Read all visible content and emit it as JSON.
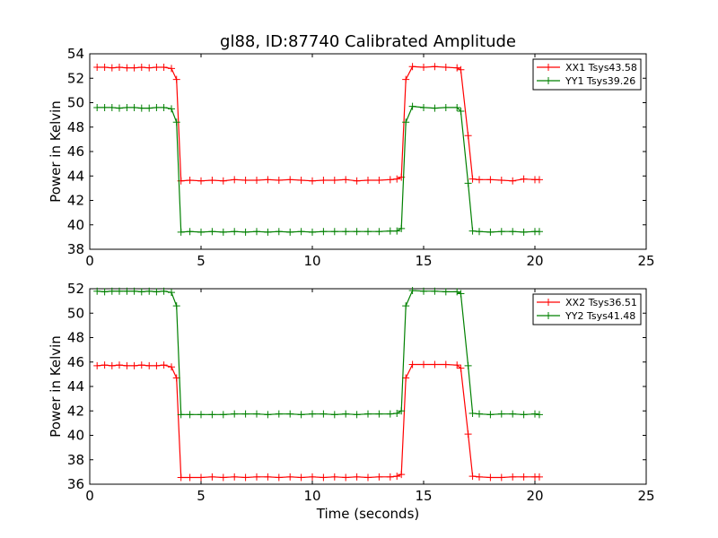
{
  "figure": {
    "title": "gl88, ID:87740 Calibrated Amplitude",
    "xlabel": "Time (seconds)"
  },
  "chart_data": [
    {
      "type": "line",
      "title": "gl88, ID:87740 Calibrated Amplitude",
      "xlabel": "",
      "ylabel": "Power in Kelvin",
      "xlim": [
        0,
        25
      ],
      "ylim": [
        38,
        54
      ],
      "x_ticks": [
        0,
        5,
        10,
        15,
        20,
        25
      ],
      "y_ticks": [
        38,
        40,
        42,
        44,
        46,
        48,
        50,
        52,
        54
      ],
      "legend_position": "top-right",
      "grid": false,
      "series": [
        {
          "name": "XX1 Tsys43.58",
          "color": "#ff0000",
          "points": [
            [
              0.33,
              52.9
            ],
            [
              0.67,
              52.9
            ],
            [
              1.0,
              52.85
            ],
            [
              1.33,
              52.9
            ],
            [
              1.67,
              52.85
            ],
            [
              2.0,
              52.85
            ],
            [
              2.33,
              52.9
            ],
            [
              2.67,
              52.85
            ],
            [
              3.0,
              52.9
            ],
            [
              3.33,
              52.9
            ],
            [
              3.67,
              52.8
            ],
            [
              3.9,
              51.9
            ],
            [
              4.1,
              43.6
            ],
            [
              4.5,
              43.65
            ],
            [
              5.0,
              43.6
            ],
            [
              5.5,
              43.65
            ],
            [
              6.0,
              43.6
            ],
            [
              6.5,
              43.7
            ],
            [
              7.0,
              43.65
            ],
            [
              7.5,
              43.65
            ],
            [
              8.0,
              43.7
            ],
            [
              8.5,
              43.65
            ],
            [
              9.0,
              43.7
            ],
            [
              9.5,
              43.65
            ],
            [
              10.0,
              43.6
            ],
            [
              10.5,
              43.65
            ],
            [
              11.0,
              43.65
            ],
            [
              11.5,
              43.7
            ],
            [
              12.0,
              43.6
            ],
            [
              12.5,
              43.65
            ],
            [
              13.0,
              43.65
            ],
            [
              13.5,
              43.7
            ],
            [
              13.8,
              43.75
            ],
            [
              14.0,
              43.9
            ],
            [
              14.2,
              51.9
            ],
            [
              14.5,
              52.95
            ],
            [
              15.0,
              52.9
            ],
            [
              15.5,
              52.95
            ],
            [
              16.0,
              52.9
            ],
            [
              16.5,
              52.85
            ],
            [
              16.67,
              52.7
            ],
            [
              17.0,
              47.3
            ],
            [
              17.2,
              43.75
            ],
            [
              17.5,
              43.7
            ],
            [
              18.0,
              43.7
            ],
            [
              18.5,
              43.65
            ],
            [
              19.0,
              43.6
            ],
            [
              19.5,
              43.75
            ],
            [
              20.0,
              43.7
            ],
            [
              20.2,
              43.7
            ]
          ]
        },
        {
          "name": "YY1 Tsys39.26",
          "color": "#008000",
          "points": [
            [
              0.33,
              49.6
            ],
            [
              0.67,
              49.6
            ],
            [
              1.0,
              49.6
            ],
            [
              1.33,
              49.55
            ],
            [
              1.67,
              49.6
            ],
            [
              2.0,
              49.6
            ],
            [
              2.33,
              49.55
            ],
            [
              2.67,
              49.55
            ],
            [
              3.0,
              49.6
            ],
            [
              3.33,
              49.6
            ],
            [
              3.67,
              49.5
            ],
            [
              3.9,
              48.4
            ],
            [
              4.1,
              39.4
            ],
            [
              4.5,
              39.45
            ],
            [
              5.0,
              39.4
            ],
            [
              5.5,
              39.45
            ],
            [
              6.0,
              39.4
            ],
            [
              6.5,
              39.45
            ],
            [
              7.0,
              39.4
            ],
            [
              7.5,
              39.45
            ],
            [
              8.0,
              39.4
            ],
            [
              8.5,
              39.45
            ],
            [
              9.0,
              39.4
            ],
            [
              9.5,
              39.45
            ],
            [
              10.0,
              39.4
            ],
            [
              10.5,
              39.45
            ],
            [
              11.0,
              39.45
            ],
            [
              11.5,
              39.45
            ],
            [
              12.0,
              39.45
            ],
            [
              12.5,
              39.45
            ],
            [
              13.0,
              39.45
            ],
            [
              13.5,
              39.5
            ],
            [
              13.8,
              39.5
            ],
            [
              14.0,
              39.7
            ],
            [
              14.2,
              48.4
            ],
            [
              14.5,
              49.7
            ],
            [
              15.0,
              49.6
            ],
            [
              15.5,
              49.55
            ],
            [
              16.0,
              49.6
            ],
            [
              16.5,
              49.6
            ],
            [
              16.67,
              49.3
            ],
            [
              17.0,
              43.4
            ],
            [
              17.2,
              39.5
            ],
            [
              17.5,
              39.45
            ],
            [
              18.0,
              39.4
            ],
            [
              18.5,
              39.45
            ],
            [
              19.0,
              39.45
            ],
            [
              19.5,
              39.4
            ],
            [
              20.0,
              39.45
            ],
            [
              20.2,
              39.45
            ]
          ]
        }
      ]
    },
    {
      "type": "line",
      "title": "",
      "xlabel": "Time (seconds)",
      "ylabel": "Power in Kelvin",
      "xlim": [
        0,
        25
      ],
      "ylim": [
        36,
        52
      ],
      "x_ticks": [
        0,
        5,
        10,
        15,
        20,
        25
      ],
      "y_ticks": [
        36,
        38,
        40,
        42,
        44,
        46,
        48,
        50,
        52
      ],
      "legend_position": "top-right",
      "grid": false,
      "series": [
        {
          "name": "XX2 Tsys36.51",
          "color": "#ff0000",
          "points": [
            [
              0.33,
              45.7
            ],
            [
              0.67,
              45.75
            ],
            [
              1.0,
              45.7
            ],
            [
              1.33,
              45.75
            ],
            [
              1.67,
              45.7
            ],
            [
              2.0,
              45.7
            ],
            [
              2.33,
              45.75
            ],
            [
              2.67,
              45.7
            ],
            [
              3.0,
              45.7
            ],
            [
              3.33,
              45.75
            ],
            [
              3.67,
              45.6
            ],
            [
              3.9,
              44.7
            ],
            [
              4.1,
              36.55
            ],
            [
              4.5,
              36.55
            ],
            [
              5.0,
              36.55
            ],
            [
              5.5,
              36.6
            ],
            [
              6.0,
              36.55
            ],
            [
              6.5,
              36.6
            ],
            [
              7.0,
              36.55
            ],
            [
              7.5,
              36.6
            ],
            [
              8.0,
              36.6
            ],
            [
              8.5,
              36.55
            ],
            [
              9.0,
              36.6
            ],
            [
              9.5,
              36.55
            ],
            [
              10.0,
              36.6
            ],
            [
              10.5,
              36.55
            ],
            [
              11.0,
              36.6
            ],
            [
              11.5,
              36.55
            ],
            [
              12.0,
              36.6
            ],
            [
              12.5,
              36.55
            ],
            [
              13.0,
              36.6
            ],
            [
              13.5,
              36.6
            ],
            [
              13.8,
              36.65
            ],
            [
              14.0,
              36.8
            ],
            [
              14.2,
              44.7
            ],
            [
              14.5,
              45.8
            ],
            [
              15.0,
              45.8
            ],
            [
              15.5,
              45.8
            ],
            [
              16.0,
              45.8
            ],
            [
              16.5,
              45.75
            ],
            [
              16.67,
              45.5
            ],
            [
              17.0,
              40.1
            ],
            [
              17.2,
              36.65
            ],
            [
              17.5,
              36.6
            ],
            [
              18.0,
              36.55
            ],
            [
              18.5,
              36.55
            ],
            [
              19.0,
              36.6
            ],
            [
              19.5,
              36.6
            ],
            [
              20.0,
              36.6
            ],
            [
              20.2,
              36.6
            ]
          ]
        },
        {
          "name": "YY2 Tsys41.48",
          "color": "#008000",
          "points": [
            [
              0.33,
              51.8
            ],
            [
              0.67,
              51.75
            ],
            [
              1.0,
              51.8
            ],
            [
              1.33,
              51.8
            ],
            [
              1.67,
              51.8
            ],
            [
              2.0,
              51.8
            ],
            [
              2.33,
              51.75
            ],
            [
              2.67,
              51.8
            ],
            [
              3.0,
              51.75
            ],
            [
              3.33,
              51.8
            ],
            [
              3.67,
              51.7
            ],
            [
              3.9,
              50.6
            ],
            [
              4.1,
              41.7
            ],
            [
              4.5,
              41.7
            ],
            [
              5.0,
              41.7
            ],
            [
              5.5,
              41.7
            ],
            [
              6.0,
              41.7
            ],
            [
              6.5,
              41.75
            ],
            [
              7.0,
              41.75
            ],
            [
              7.5,
              41.75
            ],
            [
              8.0,
              41.7
            ],
            [
              8.5,
              41.75
            ],
            [
              9.0,
              41.75
            ],
            [
              9.5,
              41.7
            ],
            [
              10.0,
              41.75
            ],
            [
              10.5,
              41.75
            ],
            [
              11.0,
              41.7
            ],
            [
              11.5,
              41.75
            ],
            [
              12.0,
              41.7
            ],
            [
              12.5,
              41.75
            ],
            [
              13.0,
              41.75
            ],
            [
              13.5,
              41.75
            ],
            [
              13.8,
              41.8
            ],
            [
              14.0,
              42.0
            ],
            [
              14.2,
              50.6
            ],
            [
              14.5,
              51.85
            ],
            [
              15.0,
              51.8
            ],
            [
              15.5,
              51.8
            ],
            [
              16.0,
              51.75
            ],
            [
              16.5,
              51.75
            ],
            [
              16.67,
              51.6
            ],
            [
              17.0,
              45.7
            ],
            [
              17.2,
              41.8
            ],
            [
              17.5,
              41.75
            ],
            [
              18.0,
              41.7
            ],
            [
              18.5,
              41.75
            ],
            [
              19.0,
              41.75
            ],
            [
              19.5,
              41.7
            ],
            [
              20.0,
              41.75
            ],
            [
              20.2,
              41.7
            ]
          ]
        }
      ]
    }
  ]
}
